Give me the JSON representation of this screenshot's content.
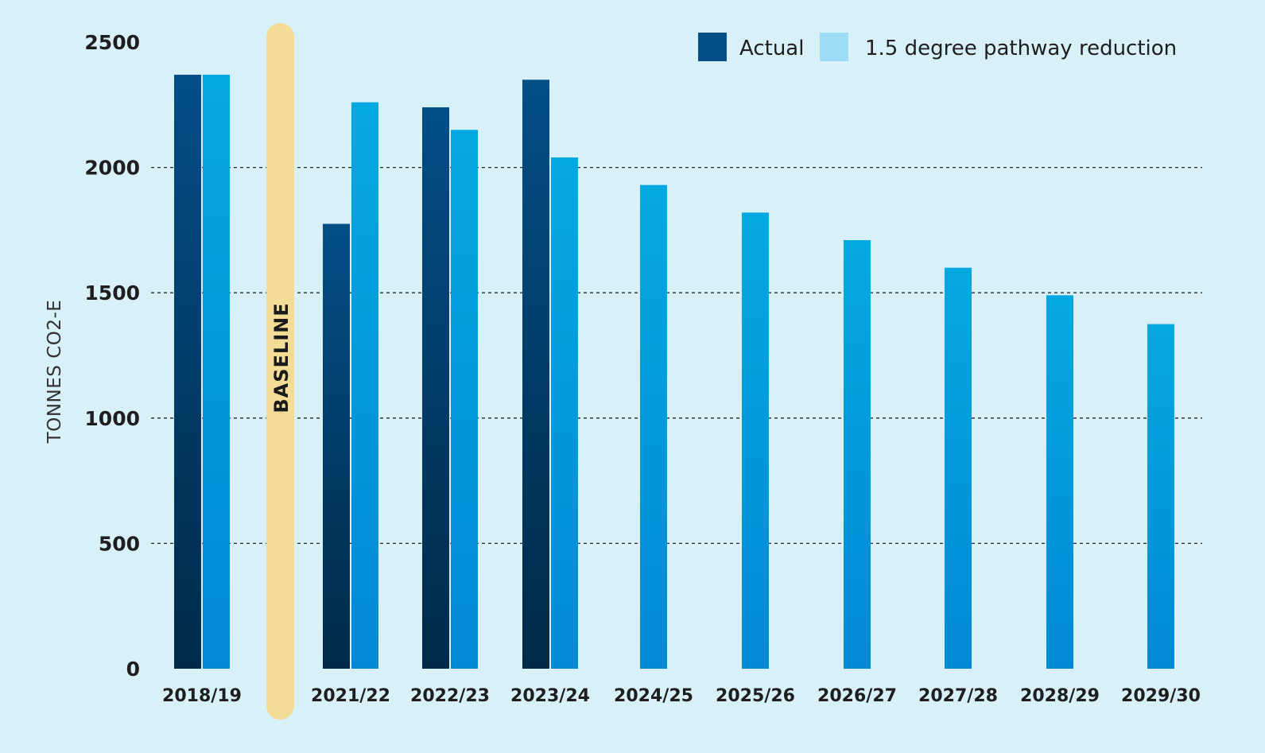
{
  "chart_data": {
    "type": "bar",
    "ylabel": "TONNES CO2-E",
    "ylim": [
      0,
      2500
    ],
    "yticks": [
      "0",
      "500",
      "1000",
      "1500",
      "2000",
      "2500"
    ],
    "grid": "dotted horizontal",
    "legend_position": "top-right",
    "categories": [
      "2018/19",
      "2021/22",
      "2022/23",
      "2023/24",
      "2024/25",
      "2025/26",
      "2026/27",
      "2027/28",
      "2028/29",
      "2029/30"
    ],
    "baseline_label": "BASELINE",
    "series": [
      {
        "name": "Actual",
        "color": "#024e87",
        "values": [
          2370,
          1775,
          2240,
          2350,
          null,
          null,
          null,
          null,
          null,
          null
        ]
      },
      {
        "name": "1.5 degree pathway reduction",
        "color": "#04a8e0",
        "values": [
          2370,
          2260,
          2150,
          2040,
          1930,
          1820,
          1710,
          1600,
          1490,
          1375
        ]
      }
    ]
  }
}
